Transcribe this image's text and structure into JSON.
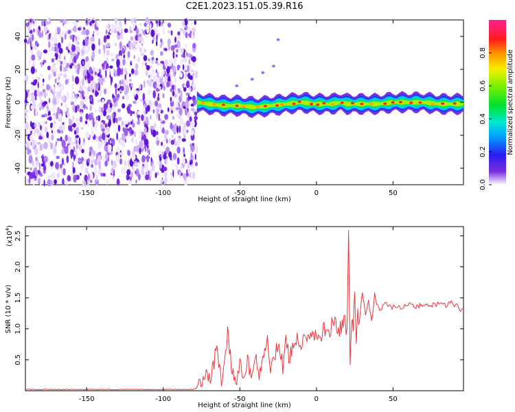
{
  "title": "C2E1.2023.151.05.39.R16",
  "chart_data": [
    {
      "type": "heatmap",
      "xlabel": "Height of straight line (km)",
      "ylabel": "Frequency (Hz)",
      "xlim": [
        -190,
        96
      ],
      "ylim": [
        -50,
        50
      ],
      "x_ticks": [
        -150,
        -100,
        -50,
        0,
        50
      ],
      "y_ticks": [
        -40,
        -20,
        0,
        20,
        40
      ],
      "noise_region_x": [
        -190,
        -78
      ],
      "signal_band": {
        "x_range": [
          -78,
          96
        ],
        "frequency_centre": [
          [
            -78,
            0
          ],
          [
            -70,
            -1
          ],
          [
            -60,
            -2
          ],
          [
            -50,
            -2
          ],
          [
            -40,
            -3
          ],
          [
            -30,
            -2
          ],
          [
            -20,
            -1
          ],
          [
            -10,
            0
          ],
          [
            0,
            -1
          ],
          [
            10,
            -1
          ],
          [
            16,
            0
          ],
          [
            20,
            -1
          ],
          [
            30,
            -1
          ],
          [
            40,
            -1
          ],
          [
            50,
            0
          ],
          [
            60,
            0
          ],
          [
            70,
            0
          ],
          [
            80,
            -1
          ],
          [
            96,
            -1
          ]
        ]
      },
      "colorbar": {
        "label": "Normalized spectral amplitude",
        "range": [
          0,
          1
        ],
        "ticks": [
          0.0,
          0.2,
          0.4,
          0.6,
          0.8
        ]
      }
    },
    {
      "type": "line",
      "xlabel": "Height of straight line (km)",
      "ylabel": "SNR (10 * v/v)",
      "y_multiplier": "(x10",
      "y_multiplier_exp": "4",
      "y_multiplier_close": ")",
      "xlim": [
        -190,
        96
      ],
      "ylim": [
        0,
        2.65
      ],
      "x_ticks": [
        -150,
        -100,
        -50,
        0,
        50
      ],
      "y_ticks": [
        0.5,
        1.0,
        1.5,
        2.0,
        2.5
      ],
      "color": "#e8353a",
      "series": [
        {
          "x": [
            -190,
            -150,
            -100,
            -80,
            -78,
            -76,
            -74,
            -72,
            -70,
            -68,
            -65,
            -62,
            -60,
            -58,
            -55,
            -52,
            -50,
            -48,
            -45,
            -42,
            -40,
            -38,
            -35,
            -32,
            -30,
            -28,
            -25,
            -22,
            -20,
            -18,
            -15,
            -12,
            -10,
            -8,
            -5,
            -2,
            0,
            2,
            5,
            8,
            10,
            12,
            15,
            18,
            20,
            21,
            22,
            23,
            24,
            25,
            26,
            27,
            28,
            30,
            32,
            34,
            36,
            38,
            40,
            42,
            45,
            48,
            50,
            55,
            60,
            65,
            70,
            75,
            80,
            85,
            88,
            90,
            92,
            94,
            96
          ],
          "y": [
            0.02,
            0.02,
            0.02,
            0.02,
            0.05,
            0.15,
            0.1,
            0.25,
            0.18,
            0.3,
            0.7,
            0.2,
            0.4,
            0.9,
            0.3,
            0.15,
            0.5,
            0.25,
            0.45,
            0.3,
            0.6,
            0.2,
            0.5,
            0.8,
            0.35,
            0.55,
            0.7,
            0.4,
            0.85,
            0.5,
            0.7,
            0.9,
            0.6,
            0.85,
            0.75,
            0.9,
            0.95,
            0.8,
            1.0,
            0.9,
            1.05,
            1.1,
            1.0,
            1.15,
            0.9,
            2.6,
            0.4,
            1.2,
            1.0,
            1.5,
            0.9,
            1.3,
            1.1,
            1.6,
            1.25,
            1.45,
            1.1,
            1.55,
            1.35,
            1.3,
            1.45,
            1.35,
            1.35,
            1.35,
            1.4,
            1.35,
            1.4,
            1.38,
            1.4,
            1.38,
            1.45,
            1.35,
            1.4,
            1.3,
            1.33
          ]
        }
      ]
    }
  ]
}
